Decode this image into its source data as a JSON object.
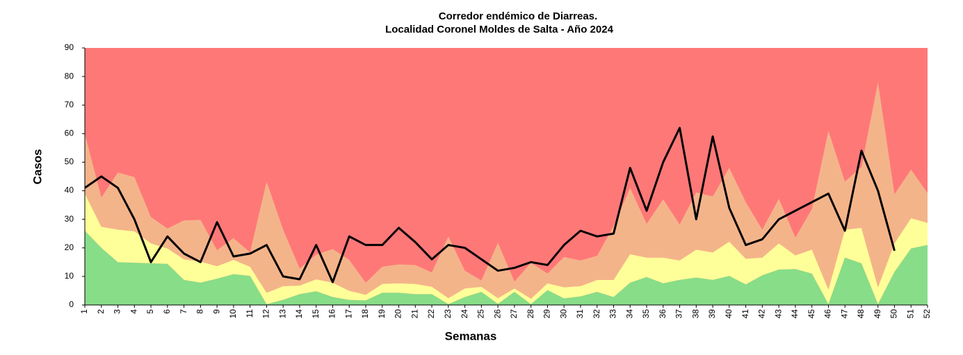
{
  "chart_data": {
    "type": "area",
    "title": "Corredor endémico de Diarreas.",
    "subtitle": "Localidad Coronel Moldes de Salta - Año 2024",
    "x_label": "Semanas",
    "y_label": "Casos",
    "background_color": "#ff7878",
    "categories": [
      "1",
      "2",
      "3",
      "4",
      "5",
      "6",
      "7",
      "8",
      "9",
      "10",
      "11",
      "12",
      "13",
      "14",
      "15",
      "16",
      "17",
      "18",
      "19",
      "20",
      "21",
      "22",
      "23",
      "24",
      "25",
      "26",
      "27",
      "28",
      "29",
      "30",
      "31",
      "32",
      "33",
      "34",
      "35",
      "36",
      "37",
      "38",
      "39",
      "40",
      "41",
      "42",
      "43",
      "44",
      "45",
      "46",
      "47",
      "48",
      "49",
      "50",
      "51",
      "52"
    ],
    "ylim": [
      0,
      90
    ],
    "yticks": [
      0,
      10,
      20,
      30,
      40,
      50,
      60,
      70,
      80,
      90
    ],
    "series": [
      {
        "type": "area",
        "color": "#88dd88",
        "values": [
          26,
          20,
          15,
          14.8,
          14.6,
          14.4,
          8.8,
          7.8,
          9.2,
          10.8,
          10.2,
          0.3,
          1.8,
          3.8,
          4.8,
          2.8,
          1.8,
          1.6,
          4.3,
          4.3,
          3.8,
          3.8,
          0.3,
          2.8,
          4.6,
          0.4,
          4.6,
          0.3,
          5.2,
          2.3,
          3,
          4.6,
          2.8,
          7.8,
          9.8,
          7.6,
          8.8,
          9.6,
          8.8,
          10.2,
          7.2,
          10.4,
          12.4,
          12.6,
          11,
          0.3,
          16.6,
          14.6,
          0.3,
          11.6,
          19.8,
          21
        ]
      },
      {
        "type": "area",
        "color": "#ffff99",
        "values": [
          13,
          7.4,
          11.4,
          11,
          7,
          5.4,
          7.2,
          7.4,
          4.4,
          5,
          3.2,
          4,
          4.8,
          3,
          4.2,
          5,
          3.2,
          2,
          3.1,
          3.3,
          3.6,
          2.6,
          2.1,
          3,
          1.8,
          2,
          1.2,
          1.9,
          2.4,
          3.9,
          3.6,
          4.2,
          6,
          10,
          6.8,
          9,
          6.8,
          9.8,
          9.6,
          12,
          9,
          6.2,
          9.2,
          4.8,
          8.4,
          5.1,
          9.8,
          12.4,
          5.9,
          10,
          10.6,
          7.8
        ]
      },
      {
        "type": "area",
        "color": "#f4b48a",
        "values": [
          21,
          10.2,
          20,
          19,
          9.2,
          7,
          13.6,
          14.6,
          5.6,
          7.6,
          5,
          38.9,
          19.8,
          6,
          8.6,
          11.8,
          10.8,
          4.2,
          6,
          6.6,
          6.6,
          5,
          21.6,
          6.2,
          2.2,
          19.4,
          2.4,
          12.6,
          3.4,
          10.6,
          9,
          8.4,
          18.8,
          23.2,
          11.8,
          20.4,
          12.6,
          20,
          19.6,
          25.8,
          19.8,
          9.8,
          15.6,
          6.2,
          14.2,
          55.6,
          16.8,
          21.4,
          71.8,
          17.2,
          17,
          10.4
        ]
      },
      {
        "type": "line",
        "color": "#000000",
        "values": [
          41,
          45,
          41,
          30,
          15,
          24,
          18,
          15,
          29,
          17,
          18,
          21,
          10,
          9,
          21,
          8,
          24,
          21,
          21,
          27,
          22,
          16,
          21,
          20,
          16,
          12,
          13,
          15,
          14,
          21,
          26,
          24,
          25,
          48,
          33,
          50,
          62,
          30,
          59,
          34,
          21,
          23,
          30,
          33,
          36,
          39,
          26,
          54,
          40,
          19,
          null,
          null
        ]
      }
    ]
  }
}
